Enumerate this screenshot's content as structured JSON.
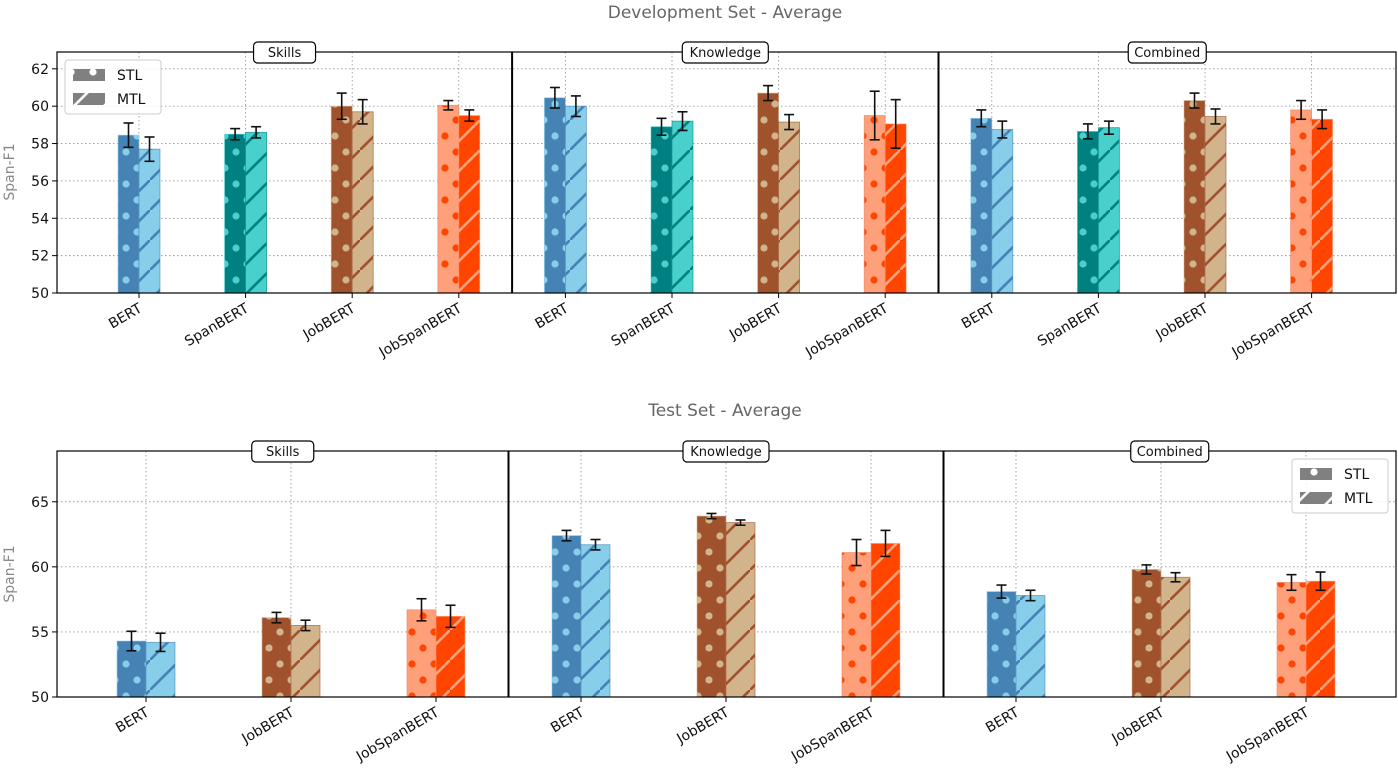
{
  "chart_data": [
    {
      "type": "bar",
      "title": "Development Set - Average",
      "ylabel": "Span-F1",
      "ylim": [
        50,
        62.9
      ],
      "yticks": [
        50,
        52,
        54,
        56,
        58,
        60,
        62
      ],
      "grid": true,
      "legend": {
        "placement": "top-left",
        "entries": [
          "STL",
          "MTL"
        ]
      },
      "colors": {
        "BERT": {
          "STL": "#4682B4",
          "MTL": "#87CEEB"
        },
        "SpanBERT": {
          "STL": "#008080",
          "MTL": "#48D1CC"
        },
        "JobBERT": {
          "STL": "#A0522D",
          "MTL": "#D2B48C"
        },
        "JobSpanBERT": {
          "STL": "#FFA07A",
          "MTL": "#FF4500"
        }
      },
      "panels": [
        {
          "name": "Skills",
          "categories": [
            "BERT",
            "SpanBERT",
            "JobBERT",
            "JobSpanBERT"
          ],
          "series": [
            {
              "name": "STL",
              "values": [
                58.45,
                58.5,
                60.0,
                60.05
              ],
              "errors": [
                0.65,
                0.3,
                0.7,
                0.25
              ]
            },
            {
              "name": "MTL",
              "values": [
                57.7,
                58.6,
                59.7,
                59.5
              ],
              "errors": [
                0.65,
                0.3,
                0.65,
                0.3
              ]
            }
          ]
        },
        {
          "name": "Knowledge",
          "categories": [
            "BERT",
            "SpanBERT",
            "JobBERT",
            "JobSpanBERT"
          ],
          "series": [
            {
              "name": "STL",
              "values": [
                60.45,
                58.9,
                60.7,
                59.5
              ],
              "errors": [
                0.55,
                0.45,
                0.4,
                1.3
              ]
            },
            {
              "name": "MTL",
              "values": [
                60.0,
                59.2,
                59.15,
                59.05
              ],
              "errors": [
                0.55,
                0.5,
                0.4,
                1.3
              ]
            }
          ]
        },
        {
          "name": "Combined",
          "categories": [
            "BERT",
            "SpanBERT",
            "JobBERT",
            "JobSpanBERT"
          ],
          "series": [
            {
              "name": "STL",
              "values": [
                59.35,
                58.65,
                60.3,
                59.8
              ],
              "errors": [
                0.45,
                0.4,
                0.4,
                0.5
              ]
            },
            {
              "name": "MTL",
              "values": [
                58.75,
                58.85,
                59.45,
                59.3
              ],
              "errors": [
                0.45,
                0.35,
                0.4,
                0.5
              ]
            }
          ]
        }
      ]
    },
    {
      "type": "bar",
      "title": "Test Set - Average",
      "ylabel": "Span-F1",
      "ylim": [
        50,
        68.9
      ],
      "yticks": [
        50,
        55,
        60,
        65
      ],
      "grid": true,
      "legend": {
        "placement": "top-right",
        "entries": [
          "STL",
          "MTL"
        ]
      },
      "colors": {
        "BERT": {
          "STL": "#4682B4",
          "MTL": "#87CEEB"
        },
        "JobBERT": {
          "STL": "#A0522D",
          "MTL": "#D2B48C"
        },
        "JobSpanBERT": {
          "STL": "#FFA07A",
          "MTL": "#FF4500"
        }
      },
      "panels": [
        {
          "name": "Skills",
          "categories": [
            "BERT",
            "JobBERT",
            "JobSpanBERT"
          ],
          "series": [
            {
              "name": "STL",
              "values": [
                54.3,
                56.1,
                56.7
              ],
              "errors": [
                0.75,
                0.4,
                0.85
              ]
            },
            {
              "name": "MTL",
              "values": [
                54.2,
                55.5,
                56.2
              ],
              "errors": [
                0.7,
                0.4,
                0.85
              ]
            }
          ]
        },
        {
          "name": "Knowledge",
          "categories": [
            "BERT",
            "JobBERT",
            "JobSpanBERT"
          ],
          "series": [
            {
              "name": "STL",
              "values": [
                62.4,
                63.9,
                61.1
              ],
              "errors": [
                0.4,
                0.2,
                1.0
              ]
            },
            {
              "name": "MTL",
              "values": [
                61.7,
                63.4,
                61.8
              ],
              "errors": [
                0.4,
                0.2,
                1.0
              ]
            }
          ]
        },
        {
          "name": "Combined",
          "categories": [
            "BERT",
            "JobBERT",
            "JobSpanBERT"
          ],
          "series": [
            {
              "name": "STL",
              "values": [
                58.1,
                59.8,
                58.8
              ],
              "errors": [
                0.5,
                0.35,
                0.6
              ]
            },
            {
              "name": "MTL",
              "values": [
                57.8,
                59.2,
                58.9
              ],
              "errors": [
                0.4,
                0.35,
                0.7
              ]
            }
          ]
        }
      ]
    }
  ]
}
